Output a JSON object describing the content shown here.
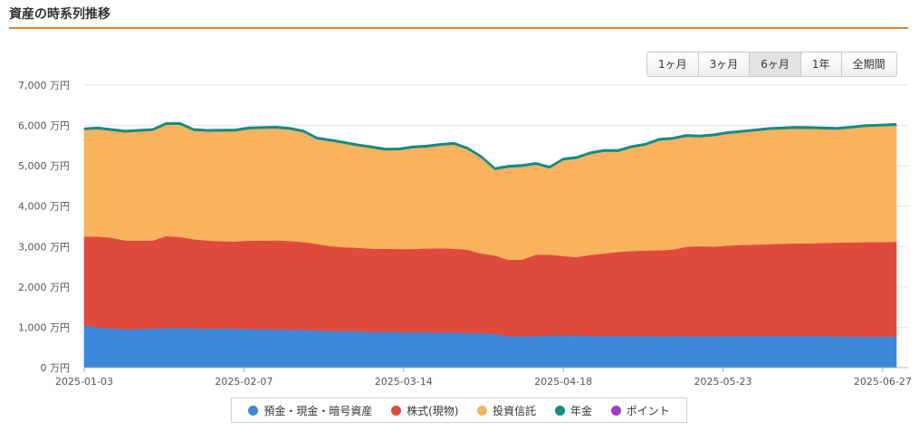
{
  "section": {
    "title": "資産の時系列推移"
  },
  "periods": [
    {
      "label": "1ヶ月",
      "active": false
    },
    {
      "label": "3ヶ月",
      "active": false
    },
    {
      "label": "6ヶ月",
      "active": true
    },
    {
      "label": "1年",
      "active": false
    },
    {
      "label": "全期間",
      "active": false
    }
  ],
  "legend": [
    {
      "label": "預金・現金・暗号資産",
      "color": "#3d87d8"
    },
    {
      "label": "株式(現物)",
      "color": "#e04a3c"
    },
    {
      "label": "投資信託",
      "color": "#f9b25e"
    },
    {
      "label": "年金",
      "color": "#138a86"
    },
    {
      "label": "ポイント",
      "color": "#9b3fbf"
    }
  ],
  "chart_data": {
    "type": "area",
    "stacked": true,
    "ylim": [
      0,
      7000
    ],
    "y_ticks": [
      0,
      1000,
      2000,
      3000,
      4000,
      5000,
      6000,
      7000
    ],
    "y_tick_labels": [
      "0 万円",
      "1,000 万円",
      "2,000 万円",
      "3,000 万円",
      "4,000 万円",
      "5,000 万円",
      "6,000 万円",
      "7,000 万円"
    ],
    "x_tick_labels": [
      "2025-01-03",
      "2025-02-07",
      "2025-03-14",
      "2025-04-18",
      "2025-05-23",
      "2025-06-27"
    ],
    "x_range": [
      "2025-01-03",
      "2025-06-30"
    ],
    "grid": true,
    "legend_position": "bottom",
    "x": [
      "2025-01-03",
      "2025-01-06",
      "2025-01-09",
      "2025-01-12",
      "2025-01-15",
      "2025-01-18",
      "2025-01-21",
      "2025-01-24",
      "2025-01-27",
      "2025-01-30",
      "2025-02-02",
      "2025-02-05",
      "2025-02-08",
      "2025-02-11",
      "2025-02-14",
      "2025-02-17",
      "2025-02-20",
      "2025-02-23",
      "2025-02-26",
      "2025-03-01",
      "2025-03-04",
      "2025-03-07",
      "2025-03-10",
      "2025-03-13",
      "2025-03-16",
      "2025-03-19",
      "2025-03-22",
      "2025-03-25",
      "2025-03-28",
      "2025-03-31",
      "2025-04-03",
      "2025-04-06",
      "2025-04-09",
      "2025-04-12",
      "2025-04-15",
      "2025-04-18",
      "2025-04-21",
      "2025-04-24",
      "2025-04-27",
      "2025-04-30",
      "2025-05-03",
      "2025-05-06",
      "2025-05-09",
      "2025-05-12",
      "2025-05-15",
      "2025-05-18",
      "2025-05-21",
      "2025-05-24",
      "2025-05-27",
      "2025-05-30",
      "2025-06-02",
      "2025-06-05",
      "2025-06-08",
      "2025-06-11",
      "2025-06-14",
      "2025-06-17",
      "2025-06-20",
      "2025-06-23",
      "2025-06-26",
      "2025-06-30"
    ],
    "series": [
      {
        "name": "預金・現金・暗号資産",
        "color": "#3d87d8",
        "values": [
          1050,
          1000,
          980,
          950,
          960,
          970,
          980,
          990,
          980,
          970,
          975,
          965,
          960,
          950,
          945,
          940,
          935,
          925,
          910,
          905,
          900,
          890,
          885,
          880,
          880,
          875,
          870,
          870,
          860,
          850,
          840,
          790,
          780,
          790,
          800,
          805,
          800,
          795,
          790,
          790,
          790,
          785,
          780,
          785,
          785,
          780,
          780,
          785,
          790,
          790,
          790,
          790,
          790,
          790,
          790,
          780,
          775,
          770,
          770,
          775
        ]
      },
      {
        "name": "株式(現物)",
        "color": "#e04a3c",
        "values": [
          2200,
          2250,
          2240,
          2200,
          2190,
          2180,
          2280,
          2250,
          2200,
          2180,
          2160,
          2160,
          2190,
          2200,
          2210,
          2200,
          2180,
          2140,
          2100,
          2080,
          2070,
          2060,
          2060,
          2060,
          2060,
          2080,
          2090,
          2080,
          2060,
          1980,
          1940,
          1880,
          1900,
          2010,
          2000,
          1960,
          1940,
          2000,
          2040,
          2080,
          2100,
          2120,
          2130,
          2140,
          2210,
          2230,
          2220,
          2240,
          2250,
          2260,
          2270,
          2280,
          2290,
          2290,
          2300,
          2320,
          2330,
          2340,
          2340,
          2345
        ]
      },
      {
        "name": "投資信託",
        "color": "#f9b25e",
        "values": [
          2640,
          2660,
          2650,
          2680,
          2700,
          2720,
          2760,
          2780,
          2690,
          2700,
          2720,
          2730,
          2760,
          2770,
          2775,
          2760,
          2720,
          2595,
          2600,
          2565,
          2520,
          2490,
          2440,
          2450,
          2500,
          2505,
          2540,
          2580,
          2490,
          2370,
          2120,
          2290,
          2300,
          2230,
          2140,
          2375,
          2440,
          2500,
          2525,
          2480,
          2560,
          2600,
          2720,
          2730,
          2730,
          2700,
          2740,
          2770,
          2785,
          2810,
          2835,
          2840,
          2845,
          2840,
          2820,
          2800,
          2825,
          2855,
          2870,
          2875
        ]
      },
      {
        "name": "年金",
        "color": "#138a86",
        "values": [
          35,
          35,
          35,
          35,
          35,
          35,
          35,
          35,
          35,
          35,
          35,
          35,
          35,
          35,
          35,
          35,
          35,
          35,
          35,
          35,
          35,
          35,
          35,
          35,
          35,
          35,
          35,
          35,
          35,
          35,
          35,
          35,
          35,
          35,
          35,
          35,
          35,
          35,
          35,
          35,
          35,
          35,
          35,
          35,
          35,
          35,
          35,
          35,
          35,
          35,
          35,
          35,
          35,
          35,
          35,
          35,
          35,
          35,
          35,
          35
        ]
      },
      {
        "name": "ポイント",
        "color": "#9b3fbf",
        "values": [
          2,
          2,
          2,
          2,
          2,
          2,
          2,
          2,
          2,
          2,
          2,
          2,
          2,
          2,
          2,
          2,
          2,
          2,
          2,
          2,
          2,
          2,
          2,
          2,
          2,
          2,
          2,
          2,
          2,
          2,
          2,
          2,
          2,
          2,
          2,
          2,
          2,
          2,
          2,
          2,
          2,
          2,
          2,
          2,
          2,
          2,
          2,
          2,
          2,
          2,
          2,
          2,
          2,
          2,
          2,
          2,
          2,
          2,
          2,
          2
        ]
      }
    ]
  }
}
